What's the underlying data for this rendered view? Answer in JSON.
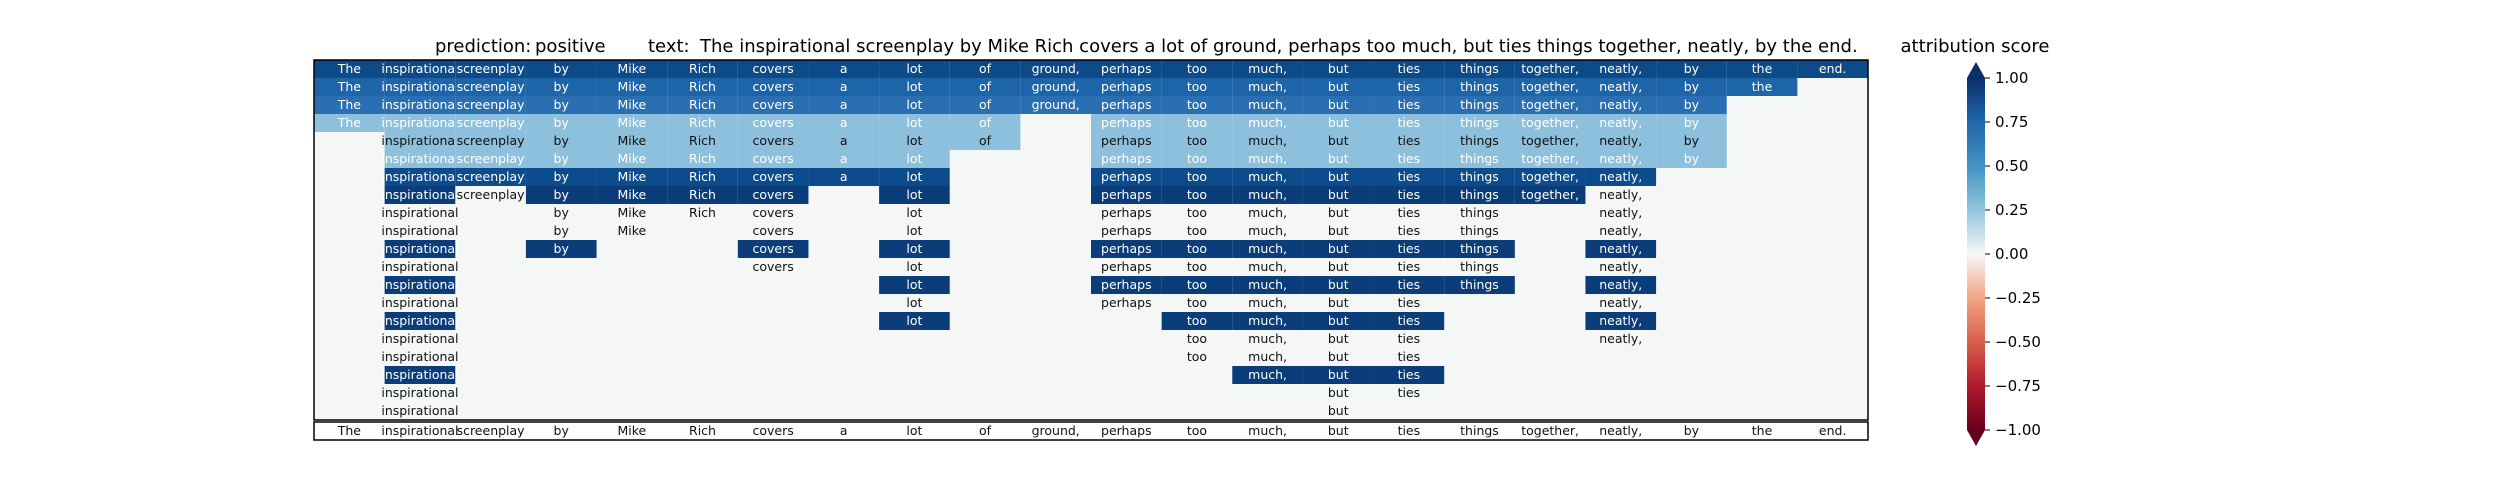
{
  "chart_data": {
    "type": "heatmap",
    "title_prediction_label": "prediction:",
    "title_prediction_value": "positive",
    "title_text_label": "text:",
    "title_text_value": "The inspirational screenplay by Mike Rich covers a lot of ground, perhaps too much, but ties things together, neatly, by the end.",
    "tokens": [
      "The",
      "inspirational",
      "screenplay",
      "by",
      "Mike",
      "Rich",
      "covers",
      "a",
      "lot",
      "of",
      "ground,",
      "perhaps",
      "too",
      "much,",
      "but",
      "ties",
      "things",
      "together,",
      "neatly,",
      "by",
      "the",
      "end."
    ],
    "rows": [
      {
        "start": 0,
        "end": 21,
        "color": "#0c4a88",
        "text": "#ffffff"
      },
      {
        "start": 0,
        "end": 20,
        "color": "#1e64a8",
        "text": "#ffffff"
      },
      {
        "start": 0,
        "end": 20,
        "color": "#2a6fb2",
        "text": "#ffffff",
        "gaps": [
          20
        ]
      },
      {
        "start": 0,
        "end": 19,
        "color": "#8cc0dd",
        "text": "#ffffff",
        "gaps": [
          10
        ]
      },
      {
        "start": 1,
        "end": 19,
        "color": "#8cc0dd",
        "text": "#111111",
        "gaps": [
          10
        ]
      },
      {
        "start": 1,
        "end": 19,
        "color": "#8cc0dd",
        "text": "#ffffff",
        "gaps": [
          9,
          10
        ]
      },
      {
        "start": 1,
        "end": 18,
        "color": "#0d4c8c",
        "text": "#ffffff",
        "gaps": [
          9,
          10,
          19
        ]
      },
      {
        "start": 1,
        "end": 18,
        "color": "#f5f7f7",
        "text": "#111111",
        "cells": [
          [
            1,
            "#0a3d7a",
            "#ffffff"
          ]
        ],
        "omit": [
          7,
          9,
          10
        ],
        "dark": [
          3,
          4,
          5,
          6,
          8,
          11,
          12,
          13,
          14,
          15,
          16,
          17
        ]
      },
      {
        "start": 1,
        "end": 18,
        "color": "#f5f7f7",
        "text": "#111111",
        "tokens_shown": [
          1,
          3,
          4,
          5,
          6,
          8,
          11,
          12,
          13,
          14,
          15,
          16,
          18
        ]
      },
      {
        "start": 1,
        "end": 18,
        "color": "#f5f7f7",
        "text": "#111111",
        "tokens_shown": [
          1,
          3,
          4,
          6,
          8,
          11,
          12,
          13,
          14,
          15,
          16,
          18
        ]
      },
      {
        "start": 1,
        "end": 18,
        "color": "#f5f7f7",
        "text": "#111111",
        "tokens_shown": [
          1,
          3,
          6,
          8,
          11,
          12,
          13,
          14,
          15,
          16,
          18
        ],
        "dark": [
          1,
          3,
          6,
          8,
          11,
          12,
          13,
          14,
          15,
          16,
          18
        ]
      },
      {
        "start": 1,
        "end": 18,
        "color": "#f5f7f7",
        "text": "#111111",
        "tokens_shown": [
          1,
          6,
          8,
          11,
          12,
          13,
          14,
          15,
          16,
          18
        ]
      },
      {
        "start": 1,
        "end": 18,
        "color": "#f5f7f7",
        "text": "#111111",
        "tokens_shown": [
          1,
          8,
          11,
          12,
          13,
          14,
          15,
          16,
          18
        ],
        "dark": [
          1,
          8,
          11,
          12,
          13,
          14,
          15,
          16,
          18
        ]
      },
      {
        "start": 1,
        "end": 18,
        "color": "#f5f7f7",
        "text": "#111111",
        "tokens_shown": [
          1,
          8,
          11,
          12,
          13,
          14,
          15,
          18
        ]
      },
      {
        "start": 1,
        "end": 18,
        "color": "#f5f7f7",
        "text": "#111111",
        "tokens_shown": [
          1,
          8,
          12,
          13,
          14,
          15,
          18
        ],
        "dark": [
          1,
          8,
          12,
          13,
          14,
          15,
          18
        ]
      },
      {
        "start": 1,
        "end": 18,
        "color": "#f5f7f7",
        "text": "#111111",
        "tokens_shown": [
          1,
          12,
          13,
          14,
          15,
          18
        ]
      },
      {
        "start": 1,
        "end": 18,
        "color": "#f5f7f7",
        "text": "#111111",
        "tokens_shown": [
          1,
          12,
          13,
          14,
          15
        ]
      },
      {
        "start": 1,
        "end": 18,
        "color": "#f5f7f7",
        "text": "#111111",
        "tokens_shown": [
          1,
          13,
          14,
          15
        ],
        "dark": [
          1,
          13,
          14,
          15
        ]
      },
      {
        "start": 1,
        "end": 18,
        "color": "#f5f7f7",
        "text": "#111111",
        "tokens_shown": [
          1,
          14,
          15
        ]
      },
      {
        "start": 1,
        "end": 18,
        "color": "#f5f7f7",
        "text": "#111111",
        "tokens_shown": [
          1,
          14
        ]
      }
    ],
    "colorbar": {
      "label": "attribution score",
      "ticks": [
        1.0,
        0.75,
        0.5,
        0.25,
        0.0,
        -0.25,
        -0.5,
        -0.75,
        -1.0
      ],
      "tick_labels": [
        "1.00",
        "0.75",
        "0.50",
        "0.25",
        "0.00",
        "−0.25",
        "−0.50",
        "−0.75",
        "−1.00"
      ],
      "range": [
        -1,
        1
      ]
    }
  }
}
